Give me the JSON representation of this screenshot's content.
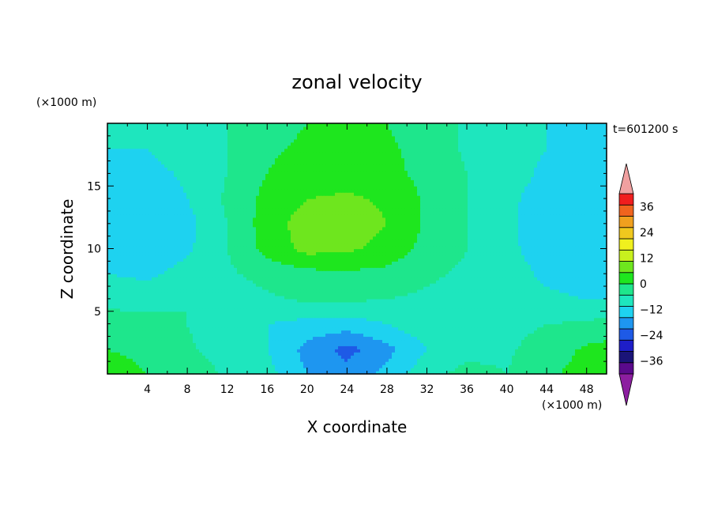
{
  "chart_data": {
    "type": "heatmap",
    "title": "zonal velocity",
    "time_label": "t=601200 s",
    "xlabel": "X coordinate",
    "ylabel": "Z coordinate",
    "x_unit": "(×1000 m)",
    "y_unit": "(×1000 m)",
    "xlim": [
      0,
      50
    ],
    "ylim": [
      0,
      20
    ],
    "xticks": [
      4,
      8,
      12,
      16,
      20,
      24,
      28,
      32,
      36,
      40,
      44,
      48
    ],
    "yticks": [
      5,
      10,
      15
    ],
    "colorbar": {
      "ticks": [
        36,
        24,
        12,
        0,
        -12,
        -24,
        -36
      ],
      "range": [
        -42,
        42
      ],
      "step": 6,
      "colors": [
        "#5a0a8c",
        "#1a1478",
        "#1e1ec8",
        "#1e5ae6",
        "#1e96f0",
        "#1ed2f0",
        "#1ee6be",
        "#1ee68c",
        "#1ee61e",
        "#6ee61e",
        "#c8f01e",
        "#f0f01e",
        "#f0c81e",
        "#f0a01e",
        "#f0641e",
        "#f01e1e"
      ],
      "under_color": "#8c1ea0",
      "over_color": "#f0a0a0"
    },
    "grid_x": [
      0,
      4,
      8,
      12,
      16,
      20,
      24,
      28,
      32,
      36,
      40,
      44,
      48,
      50
    ],
    "grid_z": [
      0,
      2,
      4,
      6,
      8,
      10,
      12,
      14,
      16,
      18,
      20
    ],
    "values": [
      [
        8,
        6,
        4,
        -1,
        -4,
        -12,
        -16,
        -10,
        -2,
        2,
        0,
        5,
        8,
        8
      ],
      [
        6,
        5,
        1,
        -3,
        -6,
        -14,
        -20,
        -14,
        -6,
        -2,
        -1,
        3,
        7,
        8
      ],
      [
        3,
        3,
        0,
        -4,
        -6,
        -8,
        -9,
        -6,
        -2,
        0,
        -2,
        0,
        1,
        2
      ],
      [
        -2,
        -3,
        0,
        -3,
        -1,
        1,
        1,
        0,
        -1,
        -2,
        -4,
        -5,
        -6,
        -6
      ],
      [
        -6,
        -7,
        -4,
        -1,
        2,
        4,
        5,
        4,
        1,
        -1,
        -4,
        -7,
        -9,
        -9
      ],
      [
        -9,
        -10,
        -7,
        0,
        8,
        14,
        13,
        10,
        4,
        0,
        -5,
        -8,
        -10,
        -10
      ],
      [
        -10,
        -11,
        -8,
        0,
        9,
        15,
        16,
        12,
        5,
        0,
        -5,
        -9,
        -10,
        -10
      ],
      [
        -9,
        -10,
        -6,
        1,
        8,
        12,
        13,
        11,
        5,
        0,
        -5,
        -8,
        -9,
        -9
      ],
      [
        -7,
        -8,
        -5,
        0,
        6,
        9,
        9,
        8,
        4,
        0,
        -4,
        -7,
        -8,
        -8
      ],
      [
        -6,
        -6,
        -3,
        0,
        5,
        7,
        7,
        7,
        4,
        -1,
        -4,
        -6,
        -8,
        -8
      ],
      [
        -6,
        -5,
        -3,
        0,
        4,
        6,
        7,
        6,
        3,
        -1,
        -4,
        -6,
        -8,
        -8
      ]
    ],
    "grid": false,
    "legend": "colorbar at right"
  }
}
